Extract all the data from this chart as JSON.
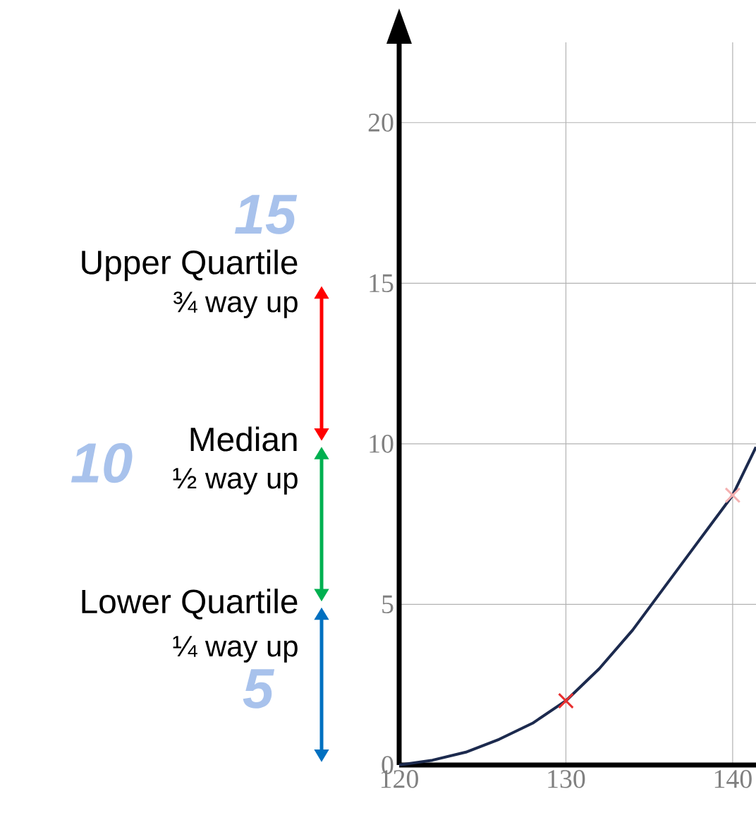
{
  "chart_data": {
    "type": "line",
    "xlim": [
      120,
      141.4
    ],
    "ylim": [
      0,
      22.5
    ],
    "xticks": [
      120,
      130,
      140
    ],
    "yticks": [
      0,
      5,
      10,
      15,
      20
    ],
    "grid": true,
    "series": [
      {
        "color": "#1c2a4e",
        "marker": "none",
        "x": [
          120,
          122,
          124,
          126,
          128,
          130,
          132,
          134,
          136,
          138,
          140,
          141.4
        ],
        "values": [
          0,
          0.15,
          0.4,
          0.8,
          1.3,
          2,
          3.0,
          4.2,
          5.6,
          7.0,
          8.4,
          9.9
        ]
      },
      {
        "type": "scatter",
        "marker": "cross",
        "x": [
          130,
          140
        ],
        "values": [
          2,
          8.4
        ],
        "colors": [
          "#e83030",
          "#f4b0b0"
        ]
      }
    ],
    "annotations": [
      "Upper Quartile",
      "¾ way up",
      "Median",
      "½ way up",
      "Lower Quartile",
      "¼ way up",
      "15",
      "10",
      "5"
    ]
  }
}
